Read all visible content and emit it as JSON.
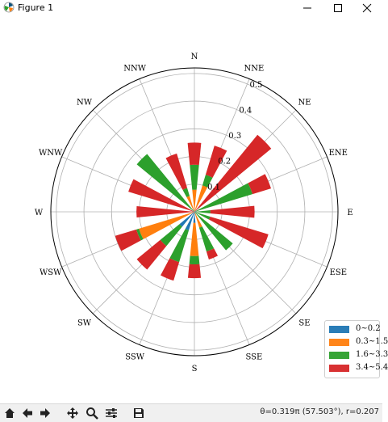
{
  "window": {
    "title": "Figure 1"
  },
  "toolbar": {
    "coordinates": "θ=0.319π (57.503°), r=0.207"
  },
  "chart_data": {
    "type": "polar-stacked-bar",
    "directions": [
      "N",
      "NNE",
      "NE",
      "ENE",
      "E",
      "ESE",
      "SE",
      "SSE",
      "S",
      "SSW",
      "SW",
      "WSW",
      "W",
      "WNW",
      "NW",
      "NNW"
    ],
    "r_ticks": [
      "0.1",
      "0.2",
      "0.3",
      "0.4",
      "0.5"
    ],
    "rmax": 0.52,
    "legend_position": "lower-right",
    "grid": true,
    "series": [
      {
        "name": "0~0.2",
        "color": "#1f77b4",
        "values": [
          0.0,
          0.0,
          0.0,
          0.0,
          0.008,
          0.0,
          0.0,
          0.0,
          0.04,
          0.07,
          0.07,
          0.0,
          0.0,
          0.0,
          0.0,
          0.0
        ]
      },
      {
        "name": "0.3~1.5",
        "color": "#ff7f0e",
        "values": [
          0.08,
          0.1,
          0.0,
          0.0,
          0.0,
          0.0,
          0.0,
          0.06,
          0.12,
          0.0,
          0.0,
          0.21,
          0.0,
          0.0,
          0.0,
          0.06
        ]
      },
      {
        "name": "1.6~3.3",
        "color": "#2ca02c",
        "values": [
          0.09,
          0.04,
          0.0,
          0.22,
          0.05,
          0.06,
          0.18,
          0.09,
          0.03,
          0.12,
          0.09,
          0.01,
          0.0,
          0.0,
          0.27,
          0.03
        ]
      },
      {
        "name": "3.4~5.4",
        "color": "#d62728",
        "values": [
          0.08,
          0.11,
          0.36,
          0.07,
          0.16,
          0.22,
          0.0,
          0.03,
          0.05,
          0.07,
          0.11,
          0.08,
          0.21,
          0.25,
          0.0,
          0.13
        ]
      }
    ]
  }
}
